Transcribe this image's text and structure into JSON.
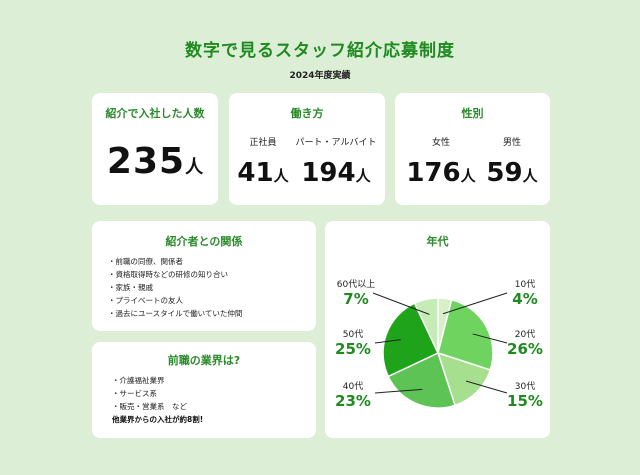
{
  "header": {
    "title": "数字で見るスタッフ紹介応募制度",
    "subtitle": "2024年度実績"
  },
  "referrals": {
    "title": "紹介で入社した人数",
    "value": "235",
    "unit": "人"
  },
  "work_style": {
    "title": "働き方",
    "items": [
      {
        "label": "正社員",
        "value": "41",
        "unit": "人"
      },
      {
        "label": "パート・アルバイト",
        "value": "194",
        "unit": "人"
      }
    ]
  },
  "gender": {
    "title": "性別",
    "items": [
      {
        "label": "女性",
        "value": "176",
        "unit": "人"
      },
      {
        "label": "男性",
        "value": "59",
        "unit": "人"
      }
    ]
  },
  "relation": {
    "title": "紹介者との関係",
    "items": [
      "・前職の同僚、関係者",
      "・資格取得時などの研修の知り合い",
      "・家族・親戚",
      "・プライベートの友人",
      "・過去にユースタイルで働いていた仲間"
    ]
  },
  "previous_industry": {
    "title": "前職の業界は?",
    "items": [
      "・介護福祉業界",
      "・サービス系",
      "・販売・営業系　など"
    ],
    "note": "他業界からの入社が約8割!"
  },
  "age": {
    "title": "年代",
    "labels": [
      {
        "name": "10代",
        "pct": "4%"
      },
      {
        "name": "20代",
        "pct": "26%"
      },
      {
        "name": "30代",
        "pct": "15%"
      },
      {
        "name": "40代",
        "pct": "23%"
      },
      {
        "name": "50代",
        "pct": "25%"
      },
      {
        "name": "60代以上",
        "pct": "7%"
      }
    ]
  },
  "chart_data": {
    "type": "pie",
    "title": "年代",
    "categories": [
      "10代",
      "20代",
      "30代",
      "40代",
      "50代",
      "60代以上"
    ],
    "values": [
      4,
      26,
      15,
      23,
      25,
      7
    ],
    "colors": [
      "#d6f0c8",
      "#6fd45f",
      "#a6e08e",
      "#5cc354",
      "#1ea31a",
      "#c5ecb6"
    ]
  },
  "colors": {
    "background": "#dcefd6",
    "accent": "#1f8a1f",
    "card": "#ffffff"
  }
}
